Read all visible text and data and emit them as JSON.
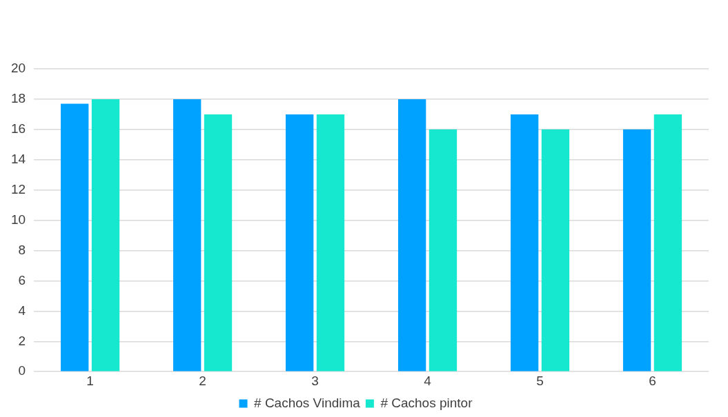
{
  "chart_data": {
    "type": "bar",
    "categories": [
      "1",
      "2",
      "3",
      "4",
      "5",
      "6"
    ],
    "series": [
      {
        "name": "# Cachos Vindima",
        "color": "#00a2ff",
        "values": [
          17.7,
          18,
          17,
          18,
          17,
          16
        ]
      },
      {
        "name": "# Cachos pintor",
        "color": "#16e7cf",
        "values": [
          18,
          17,
          17,
          16,
          16,
          17
        ]
      }
    ],
    "ylim": [
      0,
      20
    ],
    "yticks": [
      0,
      2,
      4,
      6,
      8,
      10,
      12,
      14,
      16,
      18,
      20
    ],
    "grid": "y",
    "legend": "bottom"
  }
}
